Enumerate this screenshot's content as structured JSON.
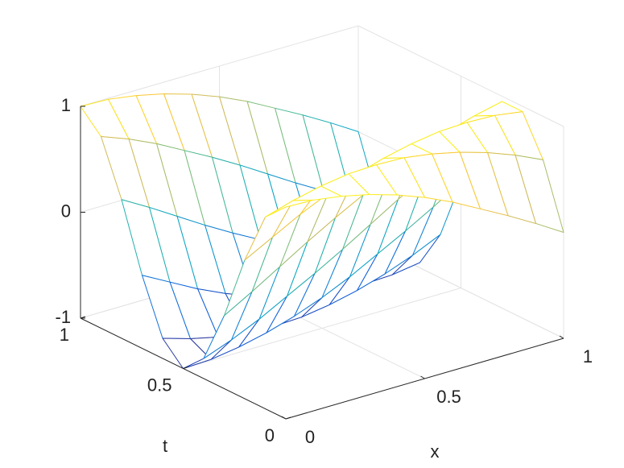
{
  "chart_data": {
    "type": "mesh",
    "xlabel": "x",
    "ylabel": "t",
    "x": [
      0,
      0.1,
      0.2,
      0.3,
      0.4,
      0.5,
      0.6,
      0.7,
      0.8,
      0.9,
      1
    ],
    "y": [
      0,
      0.1,
      0.2,
      0.3,
      0.4,
      0.5,
      0.6,
      0.7,
      0.8,
      0.9,
      1
    ],
    "z": [
      [
        1,
        0.99,
        0.95,
        0.89,
        0.81,
        0.71,
        0.59,
        0.45,
        0.31,
        0.16,
        0
      ],
      [
        0.81,
        0.89,
        0.95,
        0.99,
        1,
        0.99,
        0.95,
        0.89,
        0.81,
        0.71,
        0.59
      ],
      [
        0.31,
        0.45,
        0.59,
        0.71,
        0.81,
        0.89,
        0.95,
        0.99,
        1,
        0.99,
        0.95
      ],
      [
        -0.31,
        -0.16,
        0,
        0.16,
        0.31,
        0.45,
        0.59,
        0.71,
        0.81,
        0.89,
        0.95
      ],
      [
        -0.81,
        -0.71,
        -0.59,
        -0.45,
        -0.31,
        -0.16,
        0,
        0.16,
        0.31,
        0.45,
        0.59
      ],
      [
        -1,
        -0.99,
        -0.95,
        -0.89,
        -0.81,
        -0.71,
        -0.59,
        -0.45,
        -0.31,
        -0.16,
        0
      ],
      [
        -0.81,
        -0.89,
        -0.95,
        -0.99,
        -1,
        -0.99,
        -0.95,
        -0.89,
        -0.81,
        -0.71,
        -0.59
      ],
      [
        -0.31,
        -0.45,
        -0.59,
        -0.71,
        -0.81,
        -0.89,
        -0.95,
        -0.99,
        -1,
        -0.99,
        -0.95
      ],
      [
        0.31,
        0.16,
        0,
        -0.16,
        -0.31,
        -0.45,
        -0.59,
        -0.71,
        -0.81,
        -0.89,
        -0.95
      ],
      [
        0.81,
        0.71,
        0.59,
        0.45,
        0.31,
        0.16,
        0,
        -0.16,
        -0.31,
        -0.45,
        -0.59
      ],
      [
        1,
        0.99,
        0.95,
        0.89,
        0.81,
        0.71,
        0.59,
        0.45,
        0.31,
        0.16,
        0
      ]
    ],
    "xlim": [
      0,
      1
    ],
    "ylim": [
      0,
      1
    ],
    "zlim": [
      -1,
      1
    ],
    "xticks": [
      0,
      0.5,
      1
    ],
    "yticks": [
      0,
      0.5,
      1
    ],
    "zticks": [
      -1,
      0,
      1
    ],
    "grid": true,
    "colormap": [
      "#352a87",
      "#0f5cdd",
      "#1481d6",
      "#06a4ca",
      "#2eb7a4",
      "#87bf77",
      "#d1bb59",
      "#fec832",
      "#f9fb0e"
    ]
  }
}
